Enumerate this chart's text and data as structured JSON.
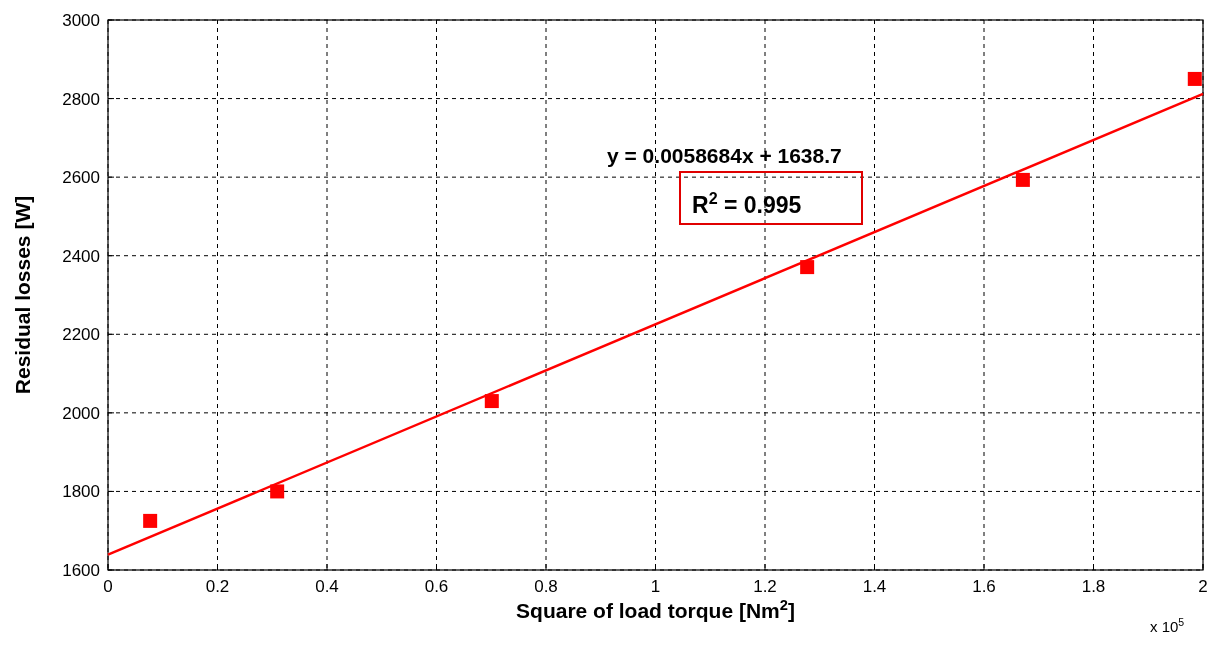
{
  "chart_data": {
    "type": "scatter",
    "xlabel": "Square of load torque [Nm$^{2}$]",
    "ylabel": "Residual losses [W]",
    "x": [
      0.077,
      0.309,
      0.701,
      1.277,
      1.671,
      1.985
    ],
    "series": [
      {
        "color": "#ff0000",
        "marker": "square",
        "values": [
          1725,
          1800,
          2030,
          2371,
          2593,
          2850
        ]
      },
      {
        "type": "line",
        "color": "#ff0000",
        "x": [
          0,
          2
        ],
        "values": [
          1639,
          2812
        ],
        "line_style": "solid"
      }
    ],
    "xlim": [
      0,
      2
    ],
    "ylim": [
      1600,
      3000
    ],
    "xticks": [
      0,
      0.2,
      0.4,
      0.6,
      0.8,
      1,
      1.2,
      1.4,
      1.6,
      1.8,
      2
    ],
    "yticks": [
      1600,
      1800,
      2000,
      2200,
      2400,
      2600,
      2800,
      3000
    ],
    "grid": true,
    "annotations": [
      "y = 0.0058684x + 1638.7",
      "R$^{2}$ = 0.995",
      "x 10$^{5}$"
    ]
  }
}
